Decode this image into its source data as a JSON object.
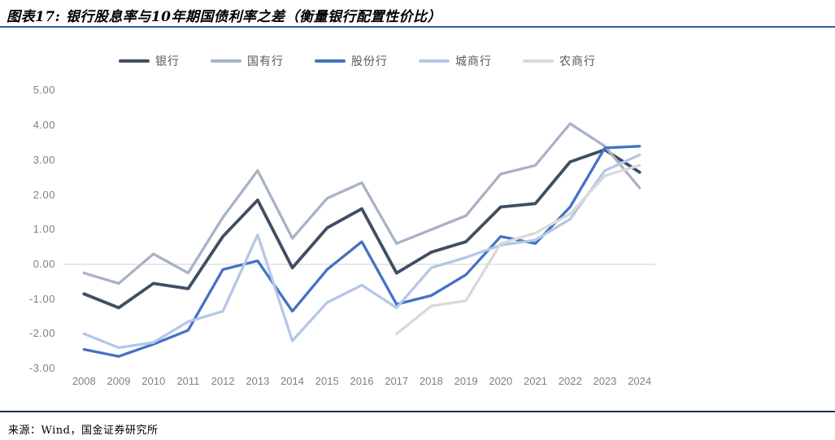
{
  "header": {
    "title": "图表17: 银行股息率与10年期国债利率之差（衡量银行配置性价比）"
  },
  "source": {
    "label": "来源：Wind，国金证券研究所"
  },
  "colors": {
    "title_rule": "#2e5ca6",
    "footer_rule": "#1f3349",
    "axis_text": "#808080",
    "zero_line": "#d9d9d9",
    "legend_text": "#595959"
  },
  "chart_data": {
    "type": "line",
    "title": "银行股息率与10年期国债利率之差",
    "x": [
      "2008",
      "2009",
      "2010",
      "2011",
      "2012",
      "2013",
      "2014",
      "2015",
      "2016",
      "2017",
      "2018",
      "2019",
      "2020",
      "2021",
      "2022",
      "2023",
      "2024"
    ],
    "yticks": [
      "5.00",
      "4.00",
      "3.00",
      "2.00",
      "1.00",
      "0.00",
      "-1.00",
      "-2.00",
      "-3.00"
    ],
    "ylim": [
      -3,
      5
    ],
    "grid": "zero-line-only",
    "legend_position": "top",
    "series": [
      {
        "name": "银行",
        "color": "#3f4e63",
        "values": [
          -0.85,
          -1.25,
          -0.55,
          -0.7,
          0.8,
          1.85,
          -0.1,
          1.05,
          1.6,
          -0.25,
          0.35,
          0.65,
          1.65,
          1.75,
          2.95,
          3.3,
          2.65
        ]
      },
      {
        "name": "国有行",
        "color": "#a8b2c6",
        "values": [
          -0.25,
          -0.55,
          0.3,
          -0.25,
          1.35,
          2.7,
          0.75,
          1.9,
          2.35,
          0.6,
          1.0,
          1.4,
          2.6,
          2.85,
          4.05,
          3.4,
          2.2
        ]
      },
      {
        "name": "股份行",
        "color": "#4472c4",
        "values": [
          -2.45,
          -2.65,
          -2.3,
          -1.9,
          -0.15,
          0.1,
          -1.35,
          -0.15,
          0.65,
          -1.15,
          -0.9,
          -0.3,
          0.8,
          0.6,
          1.65,
          3.35,
          3.4
        ]
      },
      {
        "name": "城商行",
        "color": "#b4c7e7",
        "values": [
          -2.0,
          -2.4,
          -2.25,
          -1.65,
          -1.35,
          0.85,
          -2.2,
          -1.1,
          -0.6,
          -1.25,
          -0.1,
          0.2,
          0.55,
          0.7,
          1.3,
          2.7,
          3.15
        ]
      },
      {
        "name": "农商行",
        "color": "#d9d9d9",
        "values": [
          null,
          null,
          null,
          null,
          null,
          null,
          null,
          null,
          null,
          -2.0,
          -1.2,
          -1.05,
          0.6,
          0.9,
          1.45,
          2.55,
          2.85
        ]
      }
    ]
  }
}
